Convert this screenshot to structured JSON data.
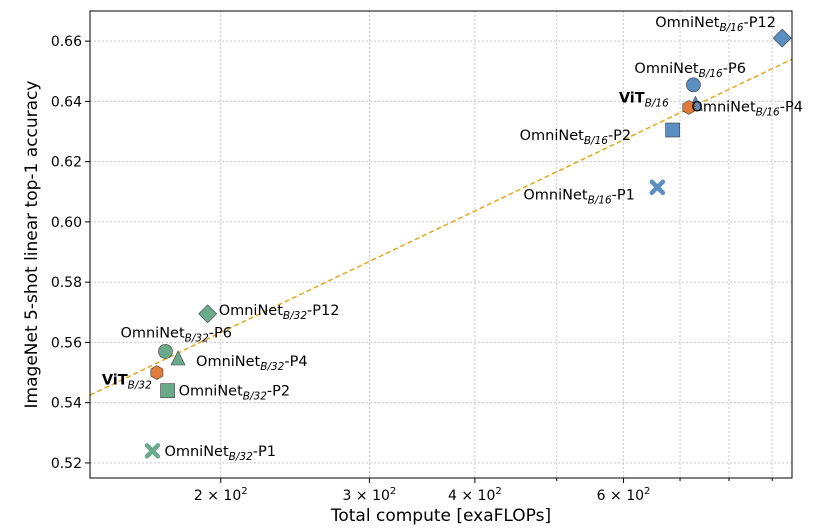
{
  "chart_data": {
    "type": "scatter",
    "title": "",
    "xlabel": "Total compute [exaFLOPs]",
    "ylabel": "ImageNet 5-shot linear top-1 accuracy",
    "xscale": "log",
    "xlim": [
      140,
      950
    ],
    "ylim": [
      0.515,
      0.67
    ],
    "grid": true,
    "x_major_ticks": [
      {
        "value": 200,
        "base": "2 × 10",
        "exp": "2"
      },
      {
        "value": 300,
        "base": "3 × 10",
        "exp": "2"
      },
      {
        "value": 400,
        "base": "4 × 10",
        "exp": "2"
      },
      {
        "value": 600,
        "base": "6 × 10",
        "exp": "2"
      }
    ],
    "x_minor_gridlines": [
      500,
      700,
      800,
      900
    ],
    "y_ticks": [
      {
        "value": 0.52,
        "label": "0.52"
      },
      {
        "value": 0.54,
        "label": "0.54"
      },
      {
        "value": 0.56,
        "label": "0.56"
      },
      {
        "value": 0.58,
        "label": "0.58"
      },
      {
        "value": 0.6,
        "label": "0.60"
      },
      {
        "value": 0.62,
        "label": "0.62"
      },
      {
        "value": 0.64,
        "label": "0.64"
      },
      {
        "value": 0.66,
        "label": "0.66"
      }
    ],
    "trend_line": {
      "from": [
        140,
        0.5425
      ],
      "to": [
        950,
        0.654
      ],
      "color": "#e3a81e",
      "style": "dashed"
    },
    "colors": {
      "B16": "#5b8fc2",
      "B32": "#6aaa8c",
      "ViT": "#e07b39"
    },
    "series": [
      {
        "name": "OmniNet B/16",
        "color": "#5b8fc2",
        "points": [
          {
            "id": "b16-p1",
            "marker": "x",
            "x": 658,
            "y": 0.6115,
            "pre": "OmniNet",
            "sub": "B/16",
            "post": "-P1"
          },
          {
            "id": "b16-p2",
            "marker": "square",
            "x": 686,
            "y": 0.6305,
            "pre": "OmniNet",
            "sub": "B/16",
            "post": "-P2"
          },
          {
            "id": "b16-p4",
            "marker": "triangle",
            "x": 730,
            "y": 0.639,
            "pre": "OmniNet",
            "sub": "B/16",
            "post": "-P4"
          },
          {
            "id": "b16-p6",
            "marker": "circle",
            "x": 726,
            "y": 0.6455,
            "pre": "OmniNet",
            "sub": "B/16",
            "post": "-P6"
          },
          {
            "id": "b16-p12",
            "marker": "diamond",
            "x": 925,
            "y": 0.661,
            "pre": "OmniNet",
            "sub": "B/16",
            "post": "-P12"
          }
        ]
      },
      {
        "name": "OmniNet B/32",
        "color": "#6aaa8c",
        "points": [
          {
            "id": "b32-p1",
            "marker": "x",
            "x": 166,
            "y": 0.524,
            "pre": "OmniNet",
            "sub": "B/32",
            "post": "-P1"
          },
          {
            "id": "b32-p2",
            "marker": "square",
            "x": 173,
            "y": 0.544,
            "pre": "OmniNet",
            "sub": "B/32",
            "post": "-P2"
          },
          {
            "id": "b32-p4",
            "marker": "triangle",
            "x": 178,
            "y": 0.5545,
            "pre": "OmniNet",
            "sub": "B/32",
            "post": "-P4"
          },
          {
            "id": "b32-p6",
            "marker": "circle",
            "x": 172,
            "y": 0.557,
            "pre": "OmniNet",
            "sub": "B/32",
            "post": "-P6"
          },
          {
            "id": "b32-p12",
            "marker": "diamond",
            "x": 193,
            "y": 0.5695,
            "pre": "OmniNet",
            "sub": "B/32",
            "post": "-P12"
          }
        ]
      },
      {
        "name": "ViT",
        "color": "#e07b39",
        "points": [
          {
            "id": "vit-b32",
            "marker": "hexagon",
            "x": 168,
            "y": 0.55,
            "pre": "ViT",
            "sub": "B/32",
            "post": ""
          },
          {
            "id": "vit-b16",
            "marker": "hexagon",
            "x": 717,
            "y": 0.638,
            "pre": "ViT",
            "sub": "B/16",
            "post": ""
          }
        ]
      }
    ]
  }
}
